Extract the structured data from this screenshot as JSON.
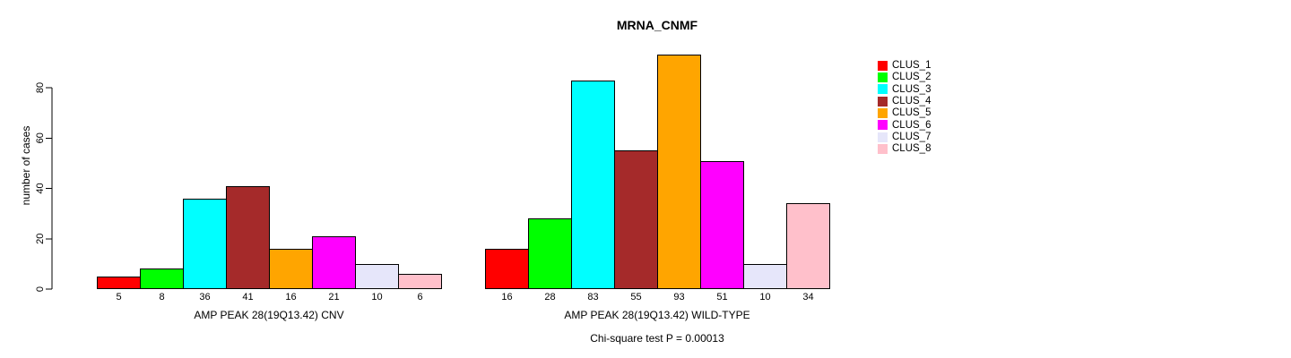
{
  "title": "MRNA_CNMF",
  "footnote": "Chi-square test P = 0.00013",
  "y_axis": {
    "label": "number of cases",
    "ticks": [
      0,
      20,
      40,
      60,
      80
    ]
  },
  "legend": {
    "entries": [
      {
        "label": "CLUS_1",
        "color": "#FF0000"
      },
      {
        "label": "CLUS_2",
        "color": "#00FF00"
      },
      {
        "label": "CLUS_3",
        "color": "#00FFFF"
      },
      {
        "label": "CLUS_4",
        "color": "#A52A2A"
      },
      {
        "label": "CLUS_5",
        "color": "#FFA500"
      },
      {
        "label": "CLUS_6",
        "color": "#FF00FF"
      },
      {
        "label": "CLUS_7",
        "color": "#E6E6FA"
      },
      {
        "label": "CLUS_8",
        "color": "#FFC0CB"
      }
    ]
  },
  "chart_data": [
    {
      "type": "bar",
      "title": "MRNA_CNMF",
      "xlabel": "AMP PEAK 28(19Q13.42) CNV",
      "ylabel": "number of cases",
      "ylim": [
        0,
        80
      ],
      "yticks": [
        0,
        20,
        40,
        60,
        80
      ],
      "categories": [
        "CLUS_1",
        "CLUS_2",
        "CLUS_3",
        "CLUS_4",
        "CLUS_5",
        "CLUS_6",
        "CLUS_7",
        "CLUS_8"
      ],
      "values": [
        5,
        8,
        36,
        41,
        16,
        21,
        10,
        6
      ],
      "colors": [
        "#FF0000",
        "#00FF00",
        "#00FFFF",
        "#A52A2A",
        "#FFA500",
        "#FF00FF",
        "#E6E6FA",
        "#FFC0CB"
      ],
      "legend_position": "right",
      "grid": false
    },
    {
      "type": "bar",
      "title": "MRNA_CNMF",
      "xlabel": "AMP PEAK 28(19Q13.42) WILD-TYPE",
      "ylabel": "number of cases",
      "ylim": [
        0,
        80
      ],
      "yticks": [
        0,
        20,
        40,
        60,
        80
      ],
      "categories": [
        "CLUS_1",
        "CLUS_2",
        "CLUS_3",
        "CLUS_4",
        "CLUS_5",
        "CLUS_6",
        "CLUS_7",
        "CLUS_8"
      ],
      "values": [
        16,
        28,
        83,
        55,
        93,
        51,
        10,
        34
      ],
      "colors": [
        "#FF0000",
        "#00FF00",
        "#00FFFF",
        "#A52A2A",
        "#FFA500",
        "#FF00FF",
        "#E6E6FA",
        "#FFC0CB"
      ],
      "legend_position": "right",
      "grid": false
    }
  ]
}
